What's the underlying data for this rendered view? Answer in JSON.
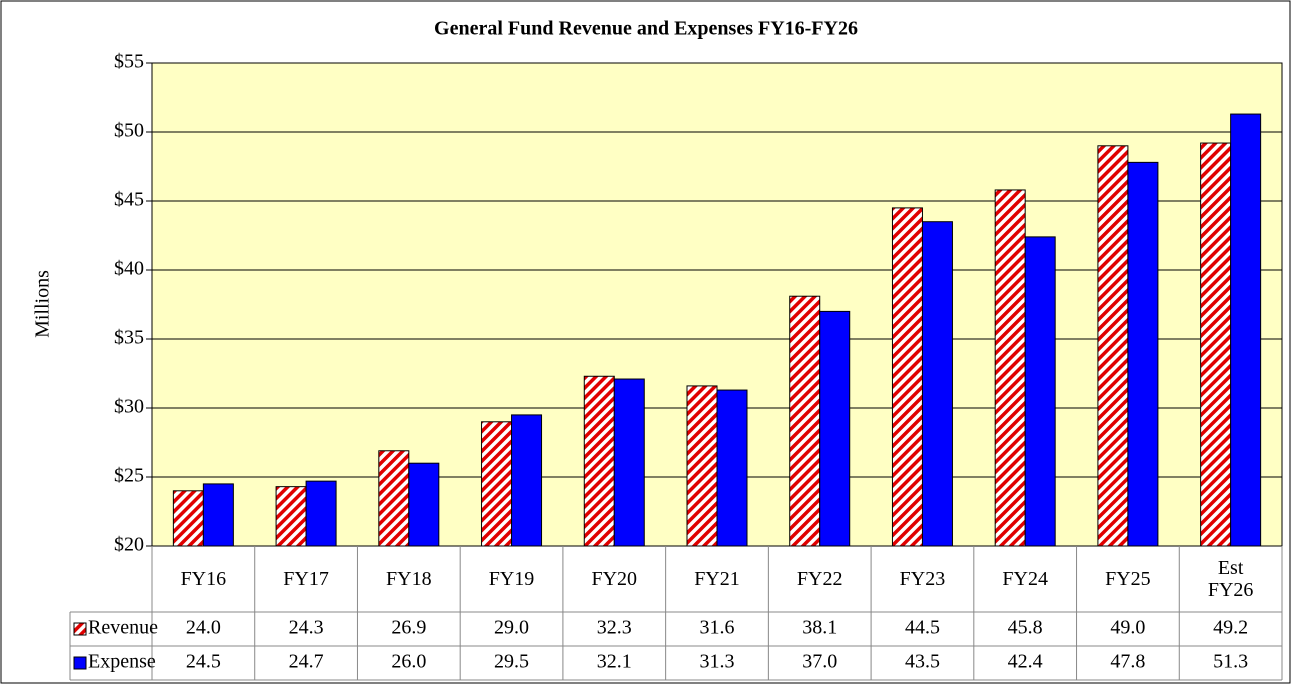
{
  "chart_data": {
    "type": "bar",
    "title": "General Fund Revenue and Expenses FY16-FY26",
    "y_label": "Millions",
    "categories": [
      "FY16",
      "FY17",
      "FY18",
      "FY19",
      "FY20",
      "FY21",
      "FY22",
      "FY23",
      "FY24",
      "FY25",
      "Est FY26"
    ],
    "series": [
      {
        "name": "Revenue",
        "color": "#e00000",
        "pattern": "hatch",
        "values": [
          24.0,
          24.3,
          26.9,
          29.0,
          32.3,
          31.6,
          38.1,
          44.5,
          45.8,
          49.0,
          49.2
        ],
        "value_labels": [
          "24.0",
          "24.3",
          "26.9",
          "29.0",
          "32.3",
          "31.6",
          "38.1",
          "44.5",
          "45.8",
          "49.0",
          "49.2"
        ]
      },
      {
        "name": "Expense",
        "color": "#0000ff",
        "values": [
          24.5,
          24.7,
          26.0,
          29.5,
          32.1,
          31.3,
          37.0,
          43.5,
          42.4,
          47.8,
          51.3
        ],
        "value_labels": [
          "24.5",
          "24.7",
          "26.0",
          "29.5",
          "32.1",
          "31.3",
          "37.0",
          "43.5",
          "42.4",
          "47.8",
          "51.3"
        ]
      }
    ],
    "ylim": [
      20,
      55
    ],
    "yticks": [
      {
        "value": 20,
        "label": "$20"
      },
      {
        "value": 25,
        "label": "$25"
      },
      {
        "value": 30,
        "label": "$30"
      },
      {
        "value": 35,
        "label": "$35"
      },
      {
        "value": 40,
        "label": "$40"
      },
      {
        "value": 45,
        "label": "$45"
      },
      {
        "value": 50,
        "label": "$50"
      },
      {
        "value": 55,
        "label": "$55"
      }
    ],
    "grid": true,
    "data_table": true
  }
}
